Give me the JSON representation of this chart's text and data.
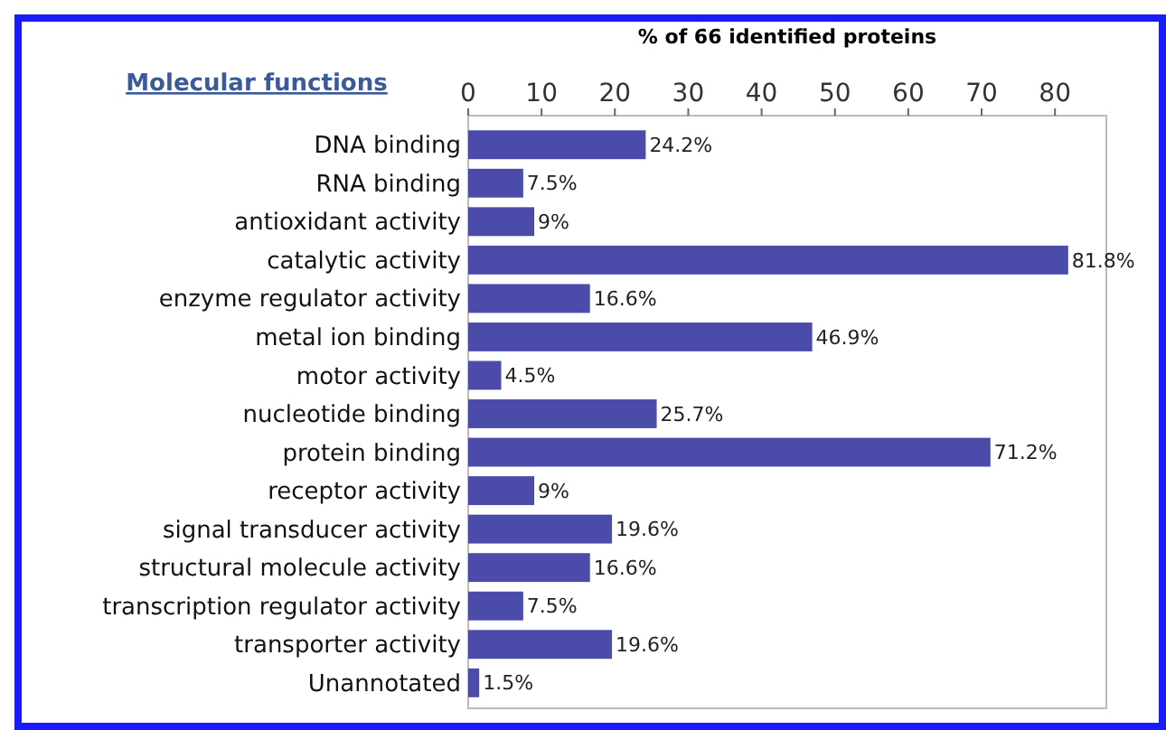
{
  "chart_data": {
    "type": "bar",
    "orientation": "horizontal",
    "title": "% of 66 identified proteins",
    "subtitle": "Molecular functions",
    "categories": [
      "DNA binding",
      "RNA binding",
      "antioxidant activity",
      "catalytic activity",
      "enzyme regulator activity",
      "metal ion binding",
      "motor activity",
      "nucleotide binding",
      "protein binding",
      "receptor activity",
      "signal transducer activity",
      "structural molecule activity",
      "transcription regulator activity",
      "transporter activity",
      "Unannotated"
    ],
    "values": [
      24.2,
      7.5,
      9,
      81.8,
      16.6,
      46.9,
      4.5,
      25.7,
      71.2,
      9,
      19.6,
      16.6,
      7.5,
      19.6,
      1.5
    ],
    "value_labels": [
      "24.2%",
      "7.5%",
      "9%",
      "81.8%",
      "16.6%",
      "46.9%",
      "4.5%",
      "25.7%",
      "71.2%",
      "9%",
      "19.6%",
      "16.6%",
      "7.5%",
      "19.6%",
      "1.5%"
    ],
    "color": "#4b4baa",
    "xlim": [
      0,
      87
    ],
    "xticks": [
      0,
      10,
      20,
      30,
      40,
      50,
      60,
      70,
      80
    ]
  }
}
